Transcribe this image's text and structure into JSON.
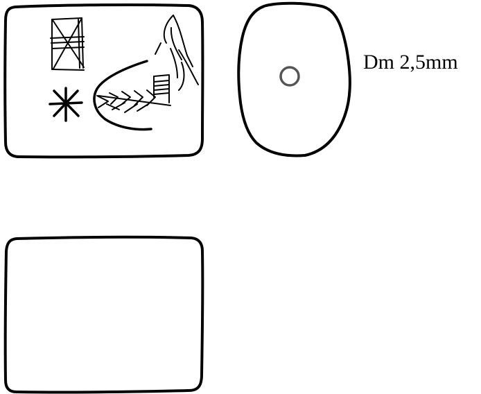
{
  "annotation": {
    "dimension_label": "Dm 2,5mm"
  },
  "colors": {
    "ink": "#000000",
    "perforation": "#555555",
    "background": "#ffffff"
  }
}
